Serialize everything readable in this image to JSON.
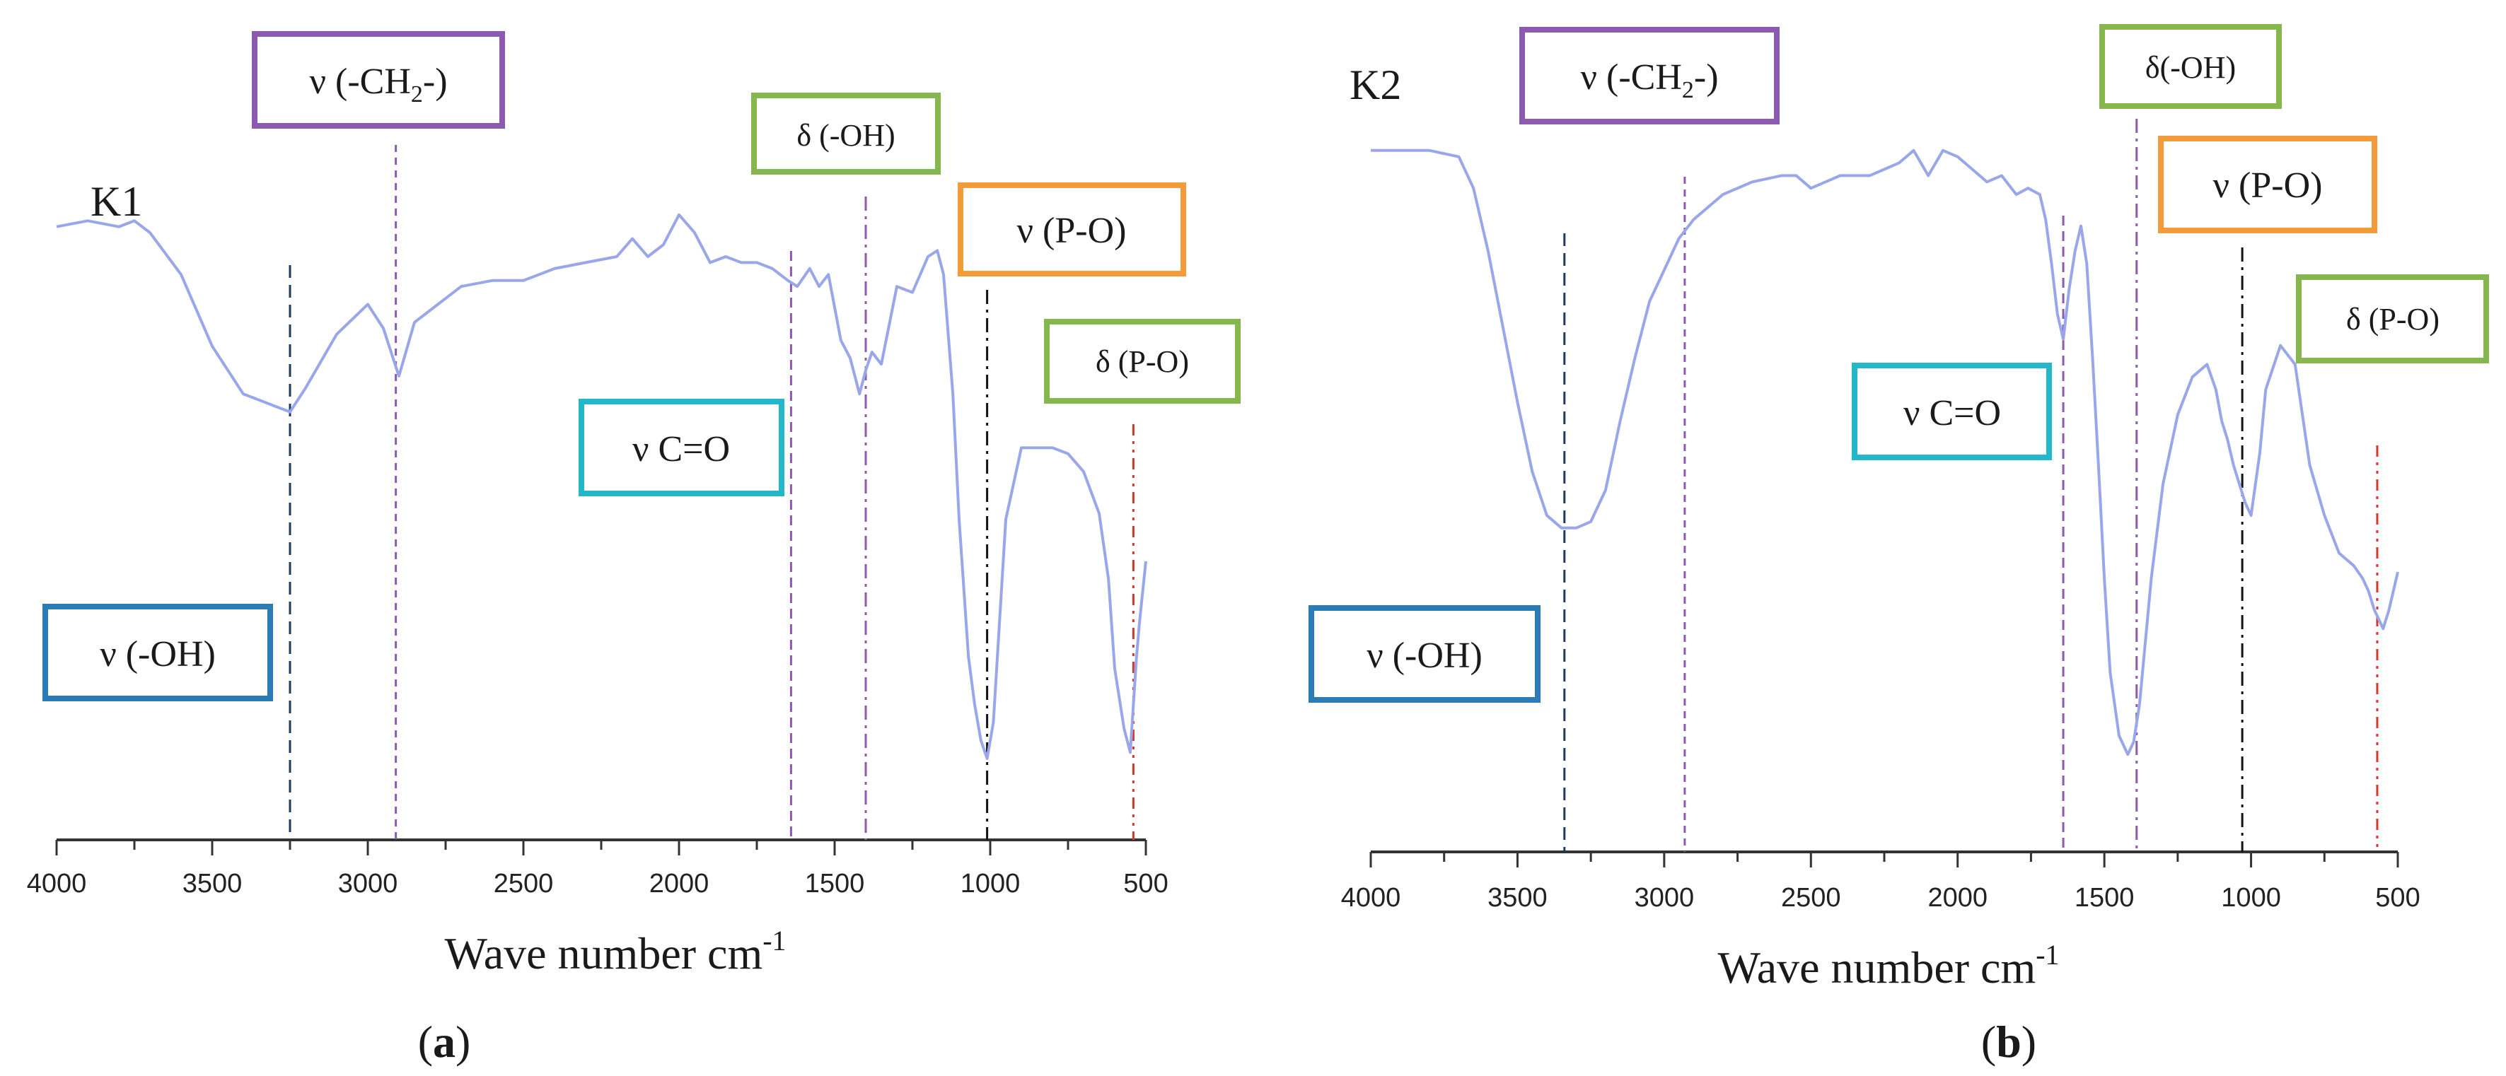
{
  "colors": {
    "spectrum": "#9aa6ea",
    "axis": "#333333",
    "purple": "#8c5bb0",
    "green": "#86b64e",
    "orange": "#f39a3a",
    "cyan": "#22b7c9",
    "blue": "#2b7cb5",
    "navy": "#1f3b63",
    "black": "#111111",
    "red": "#d9362a"
  },
  "chart_data": [
    {
      "type": "line",
      "panel": "(a)",
      "panel_letter": "a",
      "sample": "K1",
      "xlabel": "Wave number cm-1",
      "xlabel_main": "Wave number cm",
      "xlabel_sup": "-1",
      "xlim": [
        4000,
        500
      ],
      "x_ticks": [
        4000,
        3500,
        3000,
        2500,
        2000,
        1500,
        1000,
        500
      ],
      "ylim": [
        0,
        100
      ],
      "y_unit": "relative transmittance (unlabeled)",
      "series": [
        {
          "name": "K1",
          "x": [
            4000,
            3900,
            3800,
            3750,
            3700,
            3600,
            3500,
            3400,
            3300,
            3250,
            3200,
            3100,
            3000,
            2950,
            2900,
            2850,
            2800,
            2700,
            2600,
            2500,
            2400,
            2300,
            2200,
            2150,
            2100,
            2050,
            2000,
            1950,
            1900,
            1850,
            1800,
            1750,
            1700,
            1650,
            1620,
            1580,
            1550,
            1520,
            1480,
            1450,
            1420,
            1400,
            1380,
            1350,
            1300,
            1250,
            1200,
            1170,
            1150,
            1120,
            1100,
            1070,
            1050,
            1030,
            1010,
            990,
            970,
            950,
            900,
            850,
            800,
            750,
            700,
            650,
            620,
            600,
            570,
            550,
            530,
            520,
            500
          ],
          "y": [
            94,
            95,
            94,
            95,
            93,
            86,
            74,
            66,
            64,
            63,
            67,
            76,
            81,
            77,
            69,
            78,
            80,
            84,
            85,
            85,
            87,
            88,
            89,
            92,
            89,
            91,
            96,
            93,
            88,
            89,
            88,
            88,
            87,
            85,
            84,
            87,
            84,
            86,
            75,
            72,
            66,
            70,
            73,
            71,
            84,
            83,
            89,
            90,
            86,
            66,
            45,
            22,
            14,
            8,
            5,
            11,
            28,
            45,
            57,
            57,
            57,
            56,
            53,
            46,
            35,
            20,
            10,
            6,
            22,
            28,
            38
          ]
        }
      ],
      "annotations": [
        {
          "id": "v-oh",
          "text": "ν (-OH)",
          "x": 3250,
          "box_color": "blue",
          "line_color": "navy"
        },
        {
          "id": "v-ch2",
          "text_main": "ν (-CH",
          "text_sub": "2",
          "text_end": "-)",
          "text": "ν (-CH2-)",
          "x": 2910,
          "box_color": "purple",
          "line_color": "purple"
        },
        {
          "id": "v-co",
          "text": "ν C=O",
          "x": 1640,
          "box_color": "cyan",
          "line_color": "purple"
        },
        {
          "id": "d-oh",
          "text": "δ (-OH)",
          "x": 1400,
          "box_color": "green",
          "line_color": "purple"
        },
        {
          "id": "v-po",
          "text": "ν (P-O)",
          "x": 1010,
          "box_color": "orange",
          "line_color": "black"
        },
        {
          "id": "d-po",
          "text": "δ (P-O)",
          "x": 540,
          "box_color": "green",
          "line_color": "red"
        }
      ]
    },
    {
      "type": "line",
      "panel": "(b)",
      "panel_letter": "b",
      "sample": "K2",
      "xlabel": "Wave number cm-1",
      "xlabel_main": "Wave number cm",
      "xlabel_sup": "-1",
      "xlim": [
        4000,
        500
      ],
      "x_ticks": [
        4000,
        3500,
        3000,
        2500,
        2000,
        1500,
        1000,
        500
      ],
      "ylim": [
        0,
        100
      ],
      "y_unit": "relative transmittance (unlabeled)",
      "series": [
        {
          "name": "K2",
          "x": [
            4000,
            3900,
            3800,
            3700,
            3650,
            3600,
            3550,
            3500,
            3450,
            3400,
            3350,
            3300,
            3250,
            3200,
            3150,
            3100,
            3050,
            3000,
            2950,
            2900,
            2800,
            2700,
            2600,
            2550,
            2500,
            2450,
            2400,
            2300,
            2200,
            2150,
            2100,
            2050,
            2000,
            1950,
            1900,
            1850,
            1800,
            1760,
            1720,
            1700,
            1680,
            1660,
            1640,
            1620,
            1600,
            1580,
            1560,
            1540,
            1520,
            1500,
            1480,
            1450,
            1420,
            1400,
            1380,
            1360,
            1340,
            1300,
            1250,
            1200,
            1150,
            1120,
            1100,
            1080,
            1060,
            1040,
            1020,
            1000,
            970,
            950,
            900,
            850,
            800,
            750,
            700,
            650,
            620,
            600,
            580,
            560,
            550,
            530,
            500
          ],
          "y": [
            98,
            98,
            98,
            97,
            92,
            82,
            70,
            58,
            47,
            40,
            38,
            38,
            39,
            44,
            55,
            65,
            74,
            79,
            84,
            87,
            91,
            93,
            94,
            94,
            92,
            93,
            94,
            94,
            96,
            98,
            94,
            98,
            97,
            95,
            93,
            94,
            91,
            92,
            91,
            87,
            80,
            72,
            68,
            76,
            82,
            86,
            80,
            65,
            48,
            30,
            15,
            5,
            2,
            4,
            10,
            20,
            30,
            45,
            56,
            62,
            64,
            60,
            55,
            52,
            48,
            45,
            42,
            40,
            50,
            60,
            67,
            64,
            48,
            40,
            34,
            32,
            30,
            28,
            25,
            23,
            22,
            25,
            31
          ]
        }
      ],
      "annotations": [
        {
          "id": "v-oh",
          "text": "ν (-OH)",
          "x": 3340,
          "box_color": "blue",
          "line_color": "navy"
        },
        {
          "id": "v-ch2",
          "text_main": "ν (-CH",
          "text_sub": "2",
          "text_end": "-)",
          "text": "ν (-CH2-)",
          "x": 2930,
          "box_color": "purple",
          "line_color": "purple"
        },
        {
          "id": "v-co",
          "text": "ν C=O",
          "x": 1640,
          "box_color": "cyan",
          "line_color": "purple"
        },
        {
          "id": "d-oh",
          "text": "δ(-OH)",
          "x": 1390,
          "box_color": "green",
          "line_color": "purple"
        },
        {
          "id": "v-po",
          "text": "ν (P-O)",
          "x": 1030,
          "box_color": "orange",
          "line_color": "black"
        },
        {
          "id": "d-po",
          "text": "δ (P-O)",
          "x": 570,
          "box_color": "green",
          "line_color": "red"
        }
      ]
    }
  ]
}
